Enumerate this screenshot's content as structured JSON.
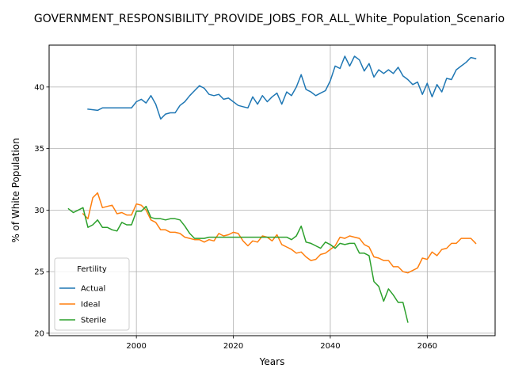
{
  "chart_data": {
    "type": "line",
    "title": "GOVERNMENT_RESPONSIBILITY_PROVIDE_JOBS_FOR_ALL_White_Population_Scenario",
    "xlabel": "Years",
    "ylabel": "% of White Population",
    "xlim": [
      1982,
      2074
    ],
    "ylim": [
      19.8,
      43.4
    ],
    "xticks": [
      2000,
      2020,
      2040,
      2060
    ],
    "yticks": [
      20,
      25,
      30,
      35,
      40
    ],
    "grid": true,
    "legend": {
      "title": "Fertility",
      "placement": "lower-left"
    },
    "series": [
      {
        "name": "Actual",
        "color": "#1f77b4",
        "x": [
          1990,
          1992,
          1993,
          1994,
          1995,
          1996,
          1997,
          1998,
          1999,
          2000,
          2001,
          2002,
          2003,
          2004,
          2005,
          2006,
          2007,
          2008,
          2009,
          2010,
          2011,
          2012,
          2013,
          2014,
          2015,
          2016,
          2017,
          2018,
          2019,
          2020,
          2021,
          2022,
          2023,
          2024,
          2025,
          2026,
          2027,
          2028,
          2029,
          2030,
          2031,
          2032,
          2033,
          2034,
          2035,
          2036,
          2037,
          2038,
          2039,
          2040,
          2041,
          2042,
          2043,
          2044,
          2045,
          2046,
          2047,
          2048,
          2049,
          2050,
          2051,
          2052,
          2053,
          2054,
          2055,
          2056,
          2057,
          2058,
          2059,
          2060,
          2061,
          2062,
          2063,
          2064,
          2065,
          2066,
          2067,
          2068,
          2069,
          2070
        ],
        "y": [
          38.2,
          38.1,
          38.3,
          38.3,
          38.3,
          38.3,
          38.3,
          38.3,
          38.3,
          38.8,
          39.0,
          38.7,
          39.3,
          38.6,
          37.4,
          37.8,
          37.9,
          37.9,
          38.5,
          38.8,
          39.3,
          39.7,
          40.1,
          39.9,
          39.4,
          39.3,
          39.4,
          39.0,
          39.1,
          38.8,
          38.5,
          38.4,
          38.3,
          39.2,
          38.6,
          39.3,
          38.8,
          39.2,
          39.5,
          38.6,
          39.6,
          39.3,
          40.0,
          41.0,
          39.8,
          39.6,
          39.3,
          39.5,
          39.7,
          40.5,
          41.7,
          41.5,
          42.5,
          41.7,
          42.5,
          42.2,
          41.3,
          41.9,
          40.8,
          41.4,
          41.1,
          41.4,
          41.1,
          41.6,
          40.9,
          40.6,
          40.2,
          40.4,
          39.4,
          40.3,
          39.2,
          40.2,
          39.6,
          40.7,
          40.6,
          41.4,
          41.7,
          42.0,
          42.4,
          42.3
        ]
      },
      {
        "name": "Ideal",
        "color": "#ff7f0e",
        "x": [
          1989,
          1990,
          1991,
          1992,
          1993,
          1994,
          1995,
          1996,
          1997,
          1998,
          1999,
          2000,
          2001,
          2002,
          2003,
          2004,
          2005,
          2006,
          2007,
          2008,
          2009,
          2010,
          2011,
          2012,
          2013,
          2014,
          2015,
          2016,
          2017,
          2018,
          2019,
          2020,
          2021,
          2022,
          2023,
          2024,
          2025,
          2026,
          2027,
          2028,
          2029,
          2030,
          2031,
          2032,
          2033,
          2034,
          2035,
          2036,
          2037,
          2038,
          2039,
          2040,
          2041,
          2042,
          2043,
          2044,
          2045,
          2046,
          2047,
          2048,
          2049,
          2050,
          2051,
          2052,
          2053,
          2054,
          2055,
          2056,
          2057,
          2058,
          2059,
          2060,
          2061,
          2062,
          2063,
          2064,
          2065,
          2066,
          2067,
          2068,
          2069,
          2070
        ],
        "y": [
          29.7,
          29.3,
          31.0,
          31.4,
          30.2,
          30.3,
          30.4,
          29.7,
          29.8,
          29.6,
          29.6,
          30.5,
          30.4,
          30.0,
          29.2,
          29.0,
          28.4,
          28.4,
          28.2,
          28.2,
          28.1,
          27.8,
          27.7,
          27.6,
          27.6,
          27.4,
          27.6,
          27.5,
          28.1,
          27.9,
          28.0,
          28.2,
          28.1,
          27.5,
          27.1,
          27.5,
          27.4,
          27.9,
          27.8,
          27.5,
          28.0,
          27.2,
          27.0,
          26.8,
          26.5,
          26.6,
          26.2,
          25.9,
          26.0,
          26.4,
          26.5,
          26.8,
          27.1,
          27.8,
          27.7,
          27.9,
          27.8,
          27.7,
          27.2,
          27.0,
          26.2,
          26.1,
          25.9,
          25.9,
          25.4,
          25.4,
          25.0,
          24.9,
          25.1,
          25.3,
          26.1,
          26.0,
          26.6,
          26.3,
          26.8,
          26.9,
          27.3,
          27.3,
          27.7,
          27.7,
          27.7,
          27.3
        ]
      },
      {
        "name": "Sterile",
        "color": "#2ca02c",
        "x": [
          1986,
          1987,
          1988,
          1989,
          1990,
          1991,
          1992,
          1993,
          1994,
          1995,
          1996,
          1997,
          1998,
          1999,
          2000,
          2001,
          2002,
          2003,
          2004,
          2005,
          2006,
          2007,
          2008,
          2009,
          2010,
          2011,
          2012,
          2013,
          2014,
          2015,
          2016,
          2017,
          2018,
          2019,
          2020,
          2021,
          2022,
          2023,
          2024,
          2025,
          2026,
          2027,
          2028,
          2029,
          2030,
          2031,
          2032,
          2033,
          2034,
          2035,
          2036,
          2037,
          2038,
          2039,
          2040,
          2041,
          2042,
          2043,
          2044,
          2045,
          2046,
          2047,
          2048,
          2049,
          2050,
          2051,
          2052,
          2053,
          2054,
          2055,
          2056
        ],
        "y": [
          30.1,
          29.8,
          30.0,
          30.2,
          28.6,
          28.8,
          29.2,
          28.6,
          28.6,
          28.4,
          28.3,
          29.0,
          28.8,
          28.8,
          29.9,
          29.9,
          30.3,
          29.4,
          29.3,
          29.3,
          29.2,
          29.3,
          29.3,
          29.2,
          28.7,
          28.1,
          27.7,
          27.7,
          27.7,
          27.8,
          27.8,
          27.8,
          27.8,
          27.8,
          27.8,
          27.8,
          27.8,
          27.8,
          27.8,
          27.8,
          27.8,
          27.8,
          27.8,
          27.8,
          27.8,
          27.8,
          27.6,
          27.9,
          28.7,
          27.4,
          27.3,
          27.1,
          26.9,
          27.4,
          27.2,
          26.9,
          27.3,
          27.2,
          27.3,
          27.3,
          26.5,
          26.5,
          26.3,
          24.2,
          23.8,
          22.6,
          23.6,
          23.1,
          22.5,
          22.5,
          20.9
        ]
      }
    ]
  }
}
